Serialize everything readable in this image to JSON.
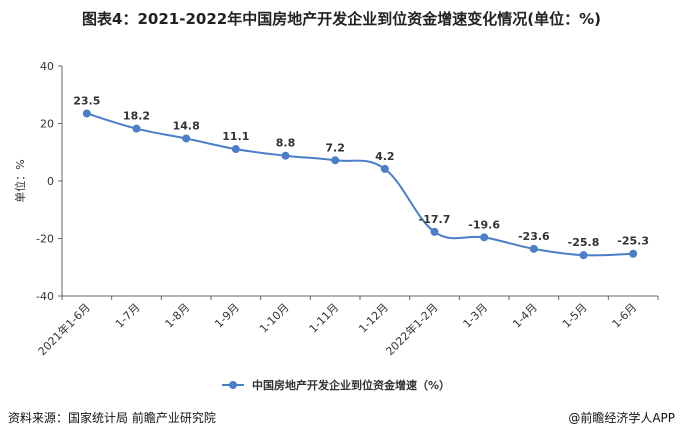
{
  "title": "图表4：2021-2022年中国房地产开发企业到位资金增速变化情况(单位：%)",
  "source": "资料来源：国家统计局 前瞻产业研究院",
  "brand": "@前瞻经济学人APP",
  "colors": {
    "series": "#4a7ec6",
    "axis": "#666666",
    "grid": "#dddddd",
    "text": "#333333"
  },
  "chart_data": {
    "type": "line",
    "title": "图表4：2021-2022年中国房地产开发企业到位资金增速变化情况(单位：%)",
    "categories": [
      "2021年1-6月",
      "1-7月",
      "1-8月",
      "1-9月",
      "1-10月",
      "1-11月",
      "1-12月",
      "2022年1-2月",
      "1-3月",
      "1-4月",
      "1-5月",
      "1-6月"
    ],
    "series": [
      {
        "name": "中国房地产开发企业到位资金增速（%）",
        "values": [
          23.5,
          18.2,
          14.8,
          11.1,
          8.8,
          7.2,
          4.2,
          -17.7,
          -19.6,
          -23.6,
          -25.8,
          -25.3
        ]
      }
    ],
    "value_labels": [
      "23.5",
      "18.2",
      "14.8",
      "11.1",
      "8.8",
      "7.2",
      "4.2",
      "-17.7",
      "-19.6",
      "-23.6",
      "-25.8",
      "-25.3"
    ],
    "ylabel": "单位：%",
    "ylim": [
      -40,
      40
    ],
    "yticks": [
      "40",
      "20",
      "0",
      "-20",
      "-40"
    ],
    "legend_position": "bottom",
    "grid": false
  }
}
